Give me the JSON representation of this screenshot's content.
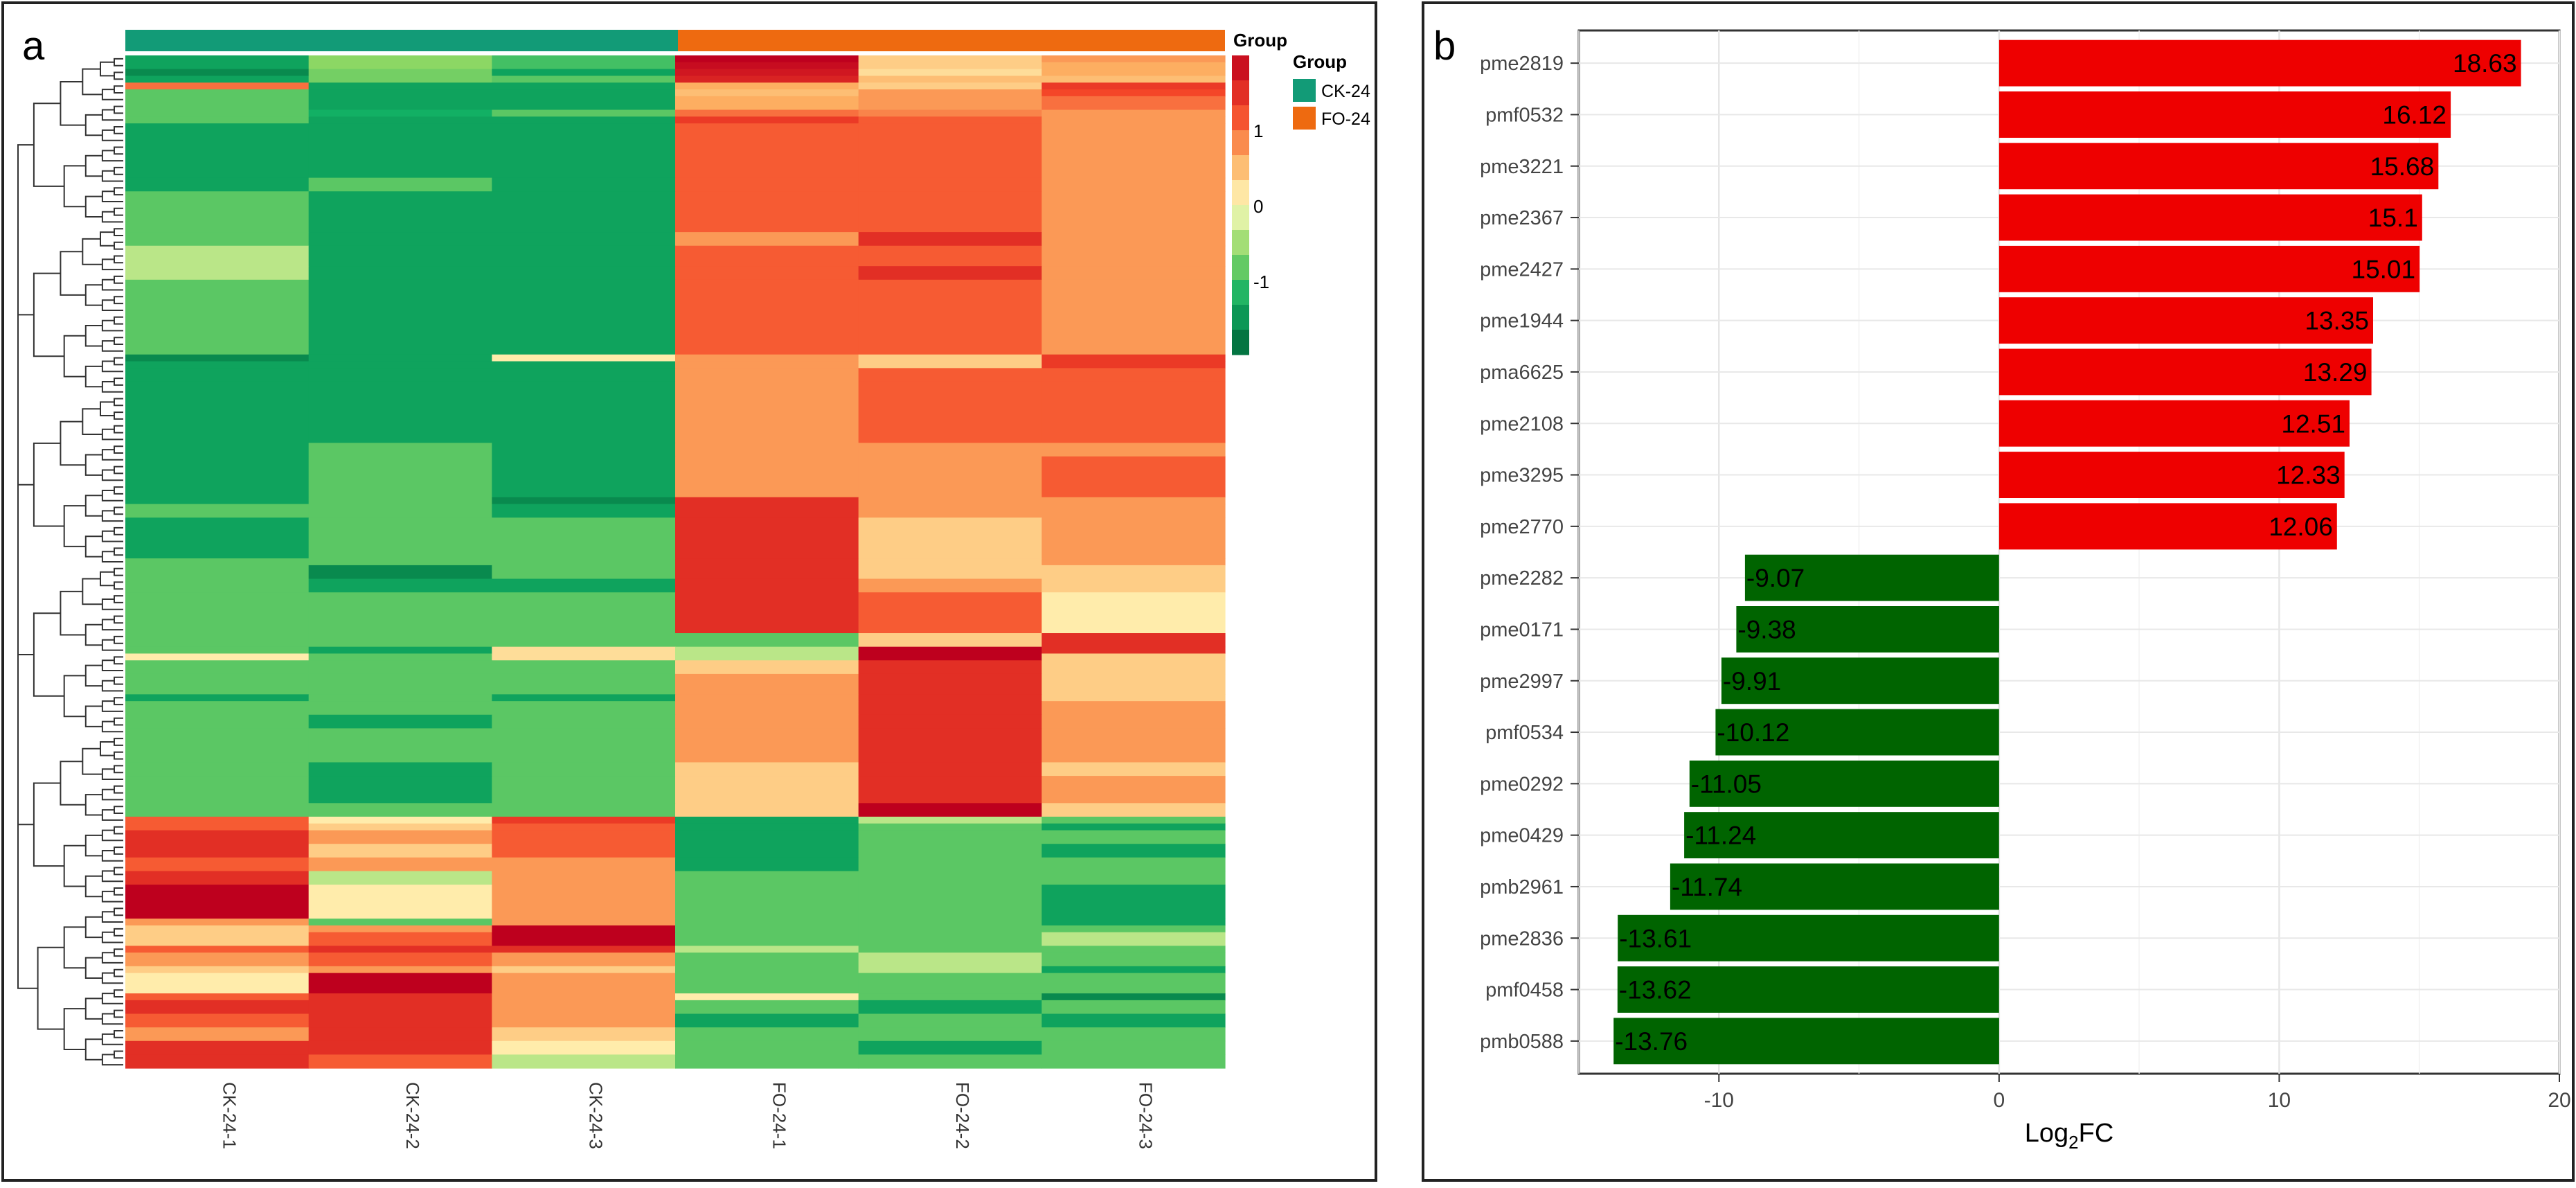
{
  "panel_a": {
    "letter": "a",
    "group_annotation_label": "Group",
    "legend": {
      "title": "Group",
      "items": [
        "CK-24",
        "FO-24"
      ]
    },
    "colorbar": {
      "tick_labels": [
        "1",
        "0",
        "-1"
      ]
    },
    "colors": {
      "ck_group": "#129b77",
      "fo_group": "#ee6a10"
    }
  },
  "panel_b": {
    "letter": "b"
  },
  "chart_data": [
    {
      "type": "heatmap",
      "title": "",
      "columns": [
        "CK-24-1",
        "CK-24-2",
        "CK-24-3",
        "FO-24-1",
        "FO-24-2",
        "FO-24-3"
      ],
      "column_groups": [
        "CK-24",
        "CK-24",
        "CK-24",
        "FO-24",
        "FO-24",
        "FO-24"
      ],
      "color_scale": {
        "min": -1.6,
        "max": 1.6,
        "ticks": [
          1,
          0,
          -1
        ]
      },
      "row_blocks": [
        {
          "rows": 1,
          "values": [
            -1.1,
            -0.5,
            -0.8,
            1.6,
            0.3,
            0.6
          ]
        },
        {
          "rows": 1,
          "values": [
            -1.1,
            -0.5,
            -0.8,
            1.5,
            0.3,
            0.5
          ]
        },
        {
          "rows": 1,
          "values": [
            -1.3,
            -0.6,
            -1.1,
            1.4,
            0.2,
            0.5
          ]
        },
        {
          "rows": 1,
          "values": [
            -1.1,
            -0.6,
            -0.7,
            1.3,
            0.4,
            0.4
          ]
        },
        {
          "rows": 1,
          "values": [
            0.8,
            -1.1,
            -1.1,
            0.5,
            0.3,
            1.1
          ]
        },
        {
          "rows": 1,
          "values": [
            -0.7,
            -1.1,
            -1.1,
            0.4,
            0.6,
            1.0
          ]
        },
        {
          "rows": 2,
          "values": [
            -0.7,
            -1.1,
            -1.1,
            0.5,
            0.6,
            0.8
          ]
        },
        {
          "rows": 1,
          "values": [
            -0.7,
            -1.0,
            -0.7,
            0.8,
            0.7,
            0.6
          ]
        },
        {
          "rows": 1,
          "values": [
            -0.7,
            -1.1,
            -1.1,
            1.1,
            0.9,
            0.6
          ]
        },
        {
          "rows": 8,
          "values": [
            -1.1,
            -1.1,
            -1.1,
            0.9,
            0.9,
            0.6
          ]
        },
        {
          "rows": 2,
          "values": [
            -1.1,
            -0.7,
            -1.1,
            0.9,
            0.9,
            0.6
          ]
        },
        {
          "rows": 6,
          "values": [
            -0.7,
            -1.1,
            -1.1,
            0.9,
            0.9,
            0.6
          ]
        },
        {
          "rows": 2,
          "values": [
            -0.7,
            -1.1,
            -1.1,
            0.6,
            1.2,
            0.6
          ]
        },
        {
          "rows": 3,
          "values": [
            -0.3,
            -1.1,
            -1.1,
            0.9,
            0.9,
            0.6
          ]
        },
        {
          "rows": 2,
          "values": [
            -0.3,
            -1.1,
            -1.1,
            0.9,
            1.2,
            0.6
          ]
        },
        {
          "rows": 11,
          "values": [
            -0.7,
            -1.1,
            -1.1,
            0.9,
            0.9,
            0.6
          ]
        },
        {
          "rows": 1,
          "values": [
            -1.3,
            -1.1,
            0.1,
            0.6,
            0.3,
            1.1
          ]
        },
        {
          "rows": 1,
          "values": [
            -1.1,
            -1.1,
            -1.1,
            0.6,
            0.3,
            1.1
          ]
        },
        {
          "rows": 2,
          "values": [
            -1.1,
            -1.1,
            -1.1,
            0.6,
            0.9,
            0.9
          ]
        },
        {
          "rows": 9,
          "values": [
            -1.1,
            -1.1,
            -1.1,
            0.6,
            0.9,
            0.9
          ]
        },
        {
          "rows": 2,
          "values": [
            -1.1,
            -0.7,
            -1.1,
            0.6,
            0.6,
            0.6
          ]
        },
        {
          "rows": 6,
          "values": [
            -1.1,
            -0.7,
            -1.1,
            0.6,
            0.6,
            0.9
          ]
        },
        {
          "rows": 1,
          "values": [
            -1.1,
            -0.7,
            -1.3,
            1.2,
            0.6,
            0.6
          ]
        },
        {
          "rows": 2,
          "values": [
            -0.7,
            -0.7,
            -1.1,
            1.2,
            0.6,
            0.6
          ]
        },
        {
          "rows": 6,
          "values": [
            -1.1,
            -0.7,
            -0.7,
            1.2,
            0.3,
            0.6
          ]
        },
        {
          "rows": 1,
          "values": [
            -0.7,
            -0.7,
            -0.7,
            1.2,
            0.3,
            0.6
          ]
        },
        {
          "rows": 2,
          "values": [
            -0.7,
            -1.3,
            -0.7,
            1.2,
            0.3,
            0.3
          ]
        },
        {
          "rows": 2,
          "values": [
            -0.7,
            -1.1,
            -1.1,
            1.2,
            0.6,
            0.3
          ]
        },
        {
          "rows": 6,
          "values": [
            -0.7,
            -0.7,
            -0.7,
            1.2,
            0.9,
            0.1
          ]
        },
        {
          "rows": 2,
          "values": [
            -0.7,
            -0.7,
            -0.7,
            -0.7,
            0.3,
            1.2
          ]
        },
        {
          "rows": 1,
          "values": [
            -0.7,
            -1.1,
            0.2,
            -0.3,
            1.6,
            1.2
          ]
        },
        {
          "rows": 1,
          "values": [
            0.1,
            -0.7,
            0.2,
            -0.3,
            1.6,
            0.3
          ]
        },
        {
          "rows": 2,
          "values": [
            -0.7,
            -0.7,
            -0.7,
            0.3,
            1.2,
            0.3
          ]
        },
        {
          "rows": 3,
          "values": [
            -0.7,
            -0.7,
            -0.7,
            0.6,
            1.2,
            0.3
          ]
        },
        {
          "rows": 1,
          "values": [
            -1.1,
            -0.7,
            -1.1,
            0.6,
            1.2,
            0.3
          ]
        },
        {
          "rows": 2,
          "values": [
            -0.7,
            -0.7,
            -0.7,
            0.6,
            1.2,
            0.6
          ]
        },
        {
          "rows": 2,
          "values": [
            -0.7,
            -1.1,
            -0.7,
            0.6,
            1.2,
            0.6
          ]
        },
        {
          "rows": 5,
          "values": [
            -0.7,
            -0.7,
            -0.7,
            0.6,
            1.2,
            0.6
          ]
        },
        {
          "rows": 2,
          "values": [
            -0.7,
            -1.1,
            -0.7,
            0.3,
            1.2,
            0.3
          ]
        },
        {
          "rows": 4,
          "values": [
            -0.7,
            -1.1,
            -0.7,
            0.3,
            1.2,
            0.6
          ]
        },
        {
          "rows": 2,
          "values": [
            -0.7,
            -0.7,
            -0.7,
            0.3,
            1.6,
            0.3
          ]
        },
        {
          "rows": 1,
          "values": [
            0.9,
            0.1,
            1.1,
            -1.1,
            -0.3,
            -0.7
          ]
        },
        {
          "rows": 1,
          "values": [
            0.9,
            0.3,
            0.9,
            -1.1,
            -0.7,
            -1.1
          ]
        },
        {
          "rows": 2,
          "values": [
            1.2,
            0.6,
            0.9,
            -1.1,
            -0.7,
            -0.7
          ]
        },
        {
          "rows": 2,
          "values": [
            1.2,
            0.3,
            0.9,
            -1.1,
            -0.7,
            -1.1
          ]
        },
        {
          "rows": 2,
          "values": [
            0.9,
            0.6,
            0.6,
            -1.1,
            -0.7,
            -0.7
          ]
        },
        {
          "rows": 2,
          "values": [
            1.2,
            -0.3,
            0.6,
            -0.7,
            -0.7,
            -0.7
          ]
        },
        {
          "rows": 5,
          "values": [
            1.6,
            0.1,
            0.6,
            -0.7,
            -0.7,
            -1.1
          ]
        },
        {
          "rows": 1,
          "values": [
            0.6,
            -0.7,
            0.6,
            -0.7,
            -0.7,
            -1.1
          ]
        },
        {
          "rows": 1,
          "values": [
            0.3,
            0.6,
            1.6,
            -0.7,
            -0.7,
            -0.7
          ]
        },
        {
          "rows": 2,
          "values": [
            0.3,
            0.9,
            1.6,
            -0.7,
            -0.7,
            -0.3
          ]
        },
        {
          "rows": 1,
          "values": [
            0.9,
            1.2,
            1.2,
            -0.3,
            -0.7,
            -0.7
          ]
        },
        {
          "rows": 2,
          "values": [
            0.6,
            0.9,
            0.6,
            -0.7,
            -0.3,
            -0.7
          ]
        },
        {
          "rows": 1,
          "values": [
            0.3,
            0.6,
            0.3,
            -0.7,
            -0.3,
            -1.1
          ]
        },
        {
          "rows": 3,
          "values": [
            0.1,
            1.6,
            0.6,
            -0.7,
            -0.7,
            -0.7
          ]
        },
        {
          "rows": 1,
          "values": [
            0.9,
            1.2,
            0.6,
            0.1,
            -0.7,
            -1.3
          ]
        },
        {
          "rows": 2,
          "values": [
            1.2,
            1.2,
            0.6,
            -0.7,
            -1.1,
            -0.7
          ]
        },
        {
          "rows": 2,
          "values": [
            0.9,
            1.2,
            0.6,
            -1.1,
            -0.7,
            -1.1
          ]
        },
        {
          "rows": 2,
          "values": [
            0.6,
            1.2,
            0.3,
            -0.7,
            -0.7,
            -0.7
          ]
        },
        {
          "rows": 2,
          "values": [
            1.2,
            1.2,
            0.1,
            -0.7,
            -1.1,
            -0.7
          ]
        },
        {
          "rows": 2,
          "values": [
            1.2,
            0.9,
            -0.3,
            -0.7,
            -0.7,
            -0.7
          ]
        }
      ]
    },
    {
      "type": "bar",
      "orientation": "horizontal",
      "title": "",
      "categories": [
        "pme2819",
        "pmf0532",
        "pme3221",
        "pme2367",
        "pme2427",
        "pme1944",
        "pma6625",
        "pme2108",
        "pme3295",
        "pme2770",
        "pme2282",
        "pme0171",
        "pme2997",
        "pmf0534",
        "pme0292",
        "pme0429",
        "pmb2961",
        "pme2836",
        "pmf0458",
        "pmb0588"
      ],
      "values": [
        18.63,
        16.12,
        15.68,
        15.1,
        15.01,
        13.35,
        13.29,
        12.51,
        12.33,
        12.06,
        -9.07,
        -9.38,
        -9.91,
        -10.12,
        -11.05,
        -11.24,
        -11.74,
        -13.61,
        -13.62,
        -13.76
      ],
      "data_labels": [
        "18.63",
        "16.12",
        "15.68",
        "15.1",
        "15.01",
        "13.35",
        "13.29",
        "12.51",
        "12.33",
        "12.06",
        "-9.07",
        "-9.38",
        "-9.91",
        "-10.12",
        "-11.05",
        "-11.24",
        "-11.74",
        "-13.61",
        "-13.62",
        "-13.76"
      ],
      "xlim": [
        -15,
        20
      ],
      "x_ticks": [
        -10,
        0,
        10,
        20
      ],
      "x_tick_labels": [
        "-10",
        "0",
        "10",
        "20"
      ],
      "xlabel": "Log",
      "xlabel_subscript": "2",
      "xlabel_suffix": "FC",
      "ylabel": "",
      "grid": true,
      "colors": {
        "positive": "#ee0000",
        "negative": "#006400"
      }
    }
  ]
}
